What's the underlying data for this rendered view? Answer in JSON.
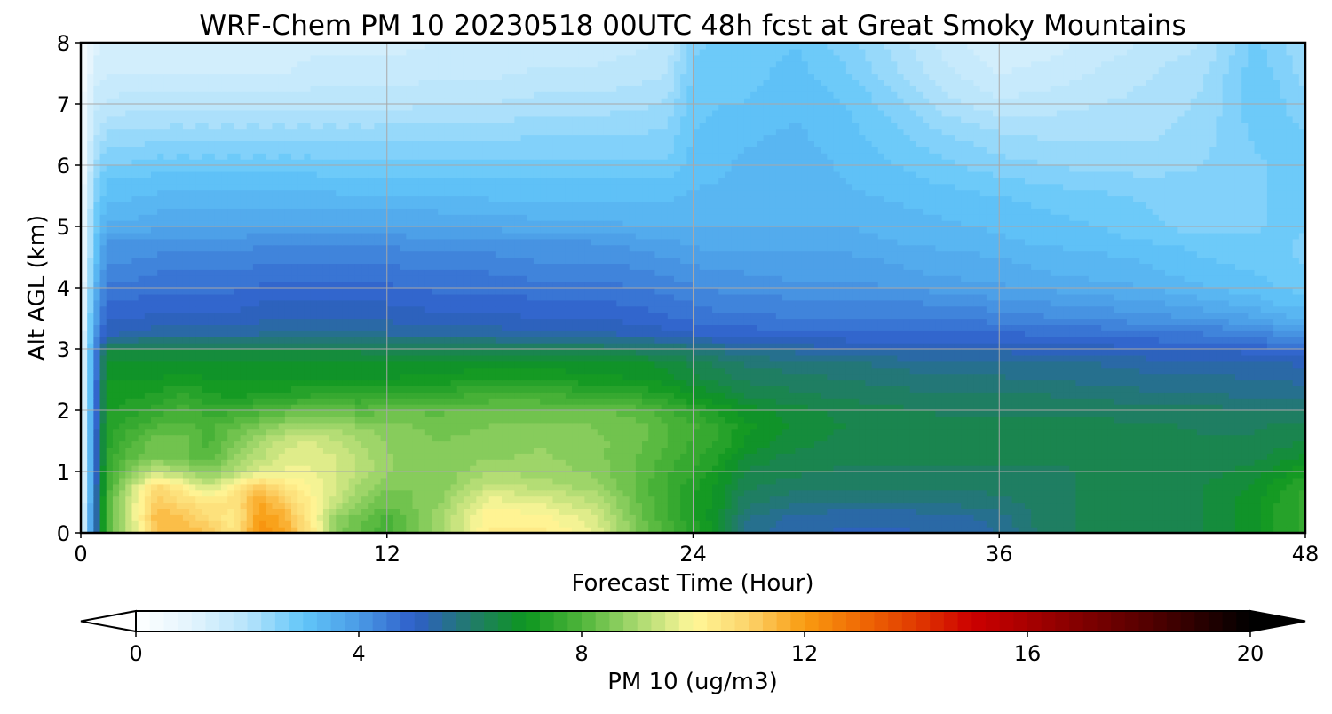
{
  "chart_data": {
    "type": "heatmap",
    "title": "WRF-Chem PM 10  20230518 00UTC 48h fcst at Great Smoky Mountains",
    "xlabel": "Forecast Time (Hour)",
    "ylabel": "Alt AGL (km)",
    "xlim": [
      0,
      48
    ],
    "ylim": [
      0,
      8
    ],
    "xticks": [
      0,
      12,
      24,
      36,
      48
    ],
    "yticks": [
      0,
      1,
      2,
      3,
      4,
      5,
      6,
      7,
      8
    ],
    "grid": true,
    "colorbar": {
      "label": "PM 10  (ug/m3)",
      "min": 0,
      "max": 20,
      "ticks": [
        0,
        4,
        8,
        12,
        16,
        20
      ],
      "extend": "both",
      "orientation": "horizontal",
      "stops": [
        {
          "v": 0,
          "c": "#ffffff"
        },
        {
          "v": 1,
          "c": "#e2f4fd"
        },
        {
          "v": 2,
          "c": "#b6e4fb"
        },
        {
          "v": 3,
          "c": "#62c6f9"
        },
        {
          "v": 4,
          "c": "#4a9ae6"
        },
        {
          "v": 5,
          "c": "#2f5ec9"
        },
        {
          "v": 6,
          "c": "#217a6b"
        },
        {
          "v": 7,
          "c": "#0d9620"
        },
        {
          "v": 8,
          "c": "#4fb53a"
        },
        {
          "v": 9,
          "c": "#a9d970"
        },
        {
          "v": 10,
          "c": "#fff799"
        },
        {
          "v": 11,
          "c": "#fcd36a"
        },
        {
          "v": 12,
          "c": "#f99b10"
        },
        {
          "v": 13,
          "c": "#f06a05"
        },
        {
          "v": 14,
          "c": "#e03a00"
        },
        {
          "v": 15,
          "c": "#cc0000"
        },
        {
          "v": 16,
          "c": "#a80000"
        },
        {
          "v": 17,
          "c": "#800000"
        },
        {
          "v": 18,
          "c": "#5a0000"
        },
        {
          "v": 19,
          "c": "#2e0000"
        },
        {
          "v": 20,
          "c": "#000000"
        }
      ]
    },
    "x": [
      0,
      0.5,
      1,
      2,
      3,
      4,
      5,
      6,
      7,
      8,
      9,
      10,
      11,
      12,
      14,
      16,
      18,
      20,
      22,
      23,
      24,
      25,
      26,
      28,
      30,
      32,
      34,
      36,
      38,
      40,
      42,
      44,
      46,
      47,
      48
    ],
    "y": [
      0,
      0.25,
      0.5,
      0.75,
      1,
      1.25,
      1.5,
      1.75,
      2,
      2.25,
      2.5,
      2.75,
      3,
      3.25,
      3.5,
      3.75,
      4,
      4.25,
      4.5,
      4.75,
      5,
      5.5,
      6,
      6.5,
      7,
      7.5,
      8
    ],
    "z": [
      [
        0.5,
        4.5,
        8.0,
        9.5,
        11.2,
        11.4,
        11.3,
        10.5,
        12.2,
        11.8,
        10.6,
        8.6,
        8.2,
        7.8,
        8.8,
        10.3,
        10.4,
        9.8,
        8.4,
        7.9,
        7.4,
        6.8,
        5.6,
        5.3,
        5.2,
        5.2,
        5.3,
        5.5,
        6.2,
        6.3,
        6.3,
        6.5,
        6.9,
        7.3,
        7.6
      ],
      [
        0.5,
        4.5,
        8.0,
        9.5,
        11.5,
        11.3,
        10.8,
        10.3,
        12.0,
        11.6,
        10.3,
        8.8,
        8.3,
        7.9,
        8.9,
        10.2,
        10.1,
        9.6,
        8.3,
        7.8,
        7.3,
        6.8,
        5.8,
        5.4,
        5.3,
        5.3,
        5.4,
        5.6,
        6.2,
        6.3,
        6.3,
        6.5,
        6.9,
        7.3,
        7.6
      ],
      [
        0.5,
        4.5,
        7.9,
        9.6,
        11.2,
        10.8,
        10.5,
        10.6,
        11.8,
        11.2,
        10.2,
        9.3,
        8.7,
        8.3,
        8.7,
        9.9,
        9.7,
        9.3,
        8.2,
        7.7,
        7.2,
        6.9,
        6.1,
        5.8,
        5.7,
        5.7,
        5.8,
        5.9,
        6.2,
        6.3,
        6.3,
        6.5,
        6.9,
        7.3,
        7.6
      ],
      [
        0.5,
        4.4,
        7.8,
        9.3,
        10.9,
        10.2,
        9.4,
        10.3,
        11.2,
        10.5,
        10.0,
        9.5,
        8.9,
        8.5,
        8.5,
        9.4,
        9.2,
        8.9,
        8.1,
        7.7,
        7.3,
        6.9,
        6.3,
        6.1,
        6.0,
        6.0,
        6.0,
        6.1,
        6.2,
        6.3,
        6.3,
        6.5,
        6.8,
        7.2,
        7.5
      ],
      [
        0.5,
        4.4,
        7.6,
        8.6,
        9.3,
        9.0,
        8.6,
        9.0,
        9.6,
        9.8,
        9.8,
        9.5,
        9.2,
        8.8,
        8.5,
        9.0,
        8.9,
        8.7,
        8.2,
        7.8,
        7.5,
        7.1,
        6.5,
        6.3,
        6.2,
        6.2,
        6.2,
        6.2,
        6.2,
        6.3,
        6.3,
        6.4,
        6.6,
        6.9,
        7.2
      ],
      [
        0.5,
        4.3,
        7.5,
        8.2,
        8.5,
        8.3,
        8.1,
        8.7,
        9.2,
        9.6,
        9.7,
        9.5,
        9.1,
        8.8,
        8.5,
        8.7,
        8.8,
        8.6,
        8.2,
        7.9,
        7.6,
        7.3,
        6.7,
        6.4,
        6.3,
        6.3,
        6.3,
        6.3,
        6.3,
        6.3,
        6.3,
        6.3,
        6.4,
        6.6,
        6.8
      ],
      [
        0.5,
        4.3,
        7.4,
        8.0,
        8.4,
        8.4,
        7.9,
        8.5,
        9.0,
        9.4,
        9.5,
        9.3,
        9.0,
        8.7,
        8.5,
        8.6,
        8.7,
        8.6,
        8.3,
        8.0,
        7.7,
        7.5,
        7.0,
        6.6,
        6.4,
        6.3,
        6.3,
        6.3,
        6.3,
        6.3,
        6.3,
        6.3,
        6.3,
        6.4,
        6.5
      ],
      [
        0.5,
        4.2,
        7.3,
        7.7,
        8.0,
        8.1,
        7.9,
        8.2,
        8.5,
        8.8,
        9.0,
        8.9,
        8.7,
        8.6,
        8.4,
        8.5,
        8.6,
        8.5,
        8.3,
        8.0,
        7.8,
        7.5,
        7.1,
        6.7,
        6.5,
        6.4,
        6.3,
        6.3,
        6.3,
        6.3,
        6.3,
        6.2,
        6.2,
        6.3,
        6.3
      ],
      [
        0.4,
        4.2,
        7.2,
        7.4,
        7.6,
        7.9,
        7.6,
        7.7,
        7.9,
        8.1,
        8.3,
        8.2,
        8.1,
        8.2,
        8.2,
        8.3,
        8.3,
        8.3,
        8.1,
        7.8,
        7.5,
        7.2,
        6.9,
        6.6,
        6.4,
        6.3,
        6.2,
        6.2,
        6.2,
        6.2,
        6.1,
        6.1,
        6.0,
        6.0,
        6.0
      ],
      [
        0.4,
        4.1,
        7.1,
        7.2,
        7.3,
        7.6,
        7.3,
        7.2,
        7.3,
        7.4,
        7.5,
        7.5,
        7.5,
        7.6,
        7.7,
        7.8,
        7.8,
        7.7,
        7.5,
        7.3,
        7.0,
        6.8,
        6.5,
        6.3,
        6.2,
        6.1,
        6.0,
        6.0,
        6.0,
        5.9,
        5.8,
        5.8,
        5.7,
        5.7,
        5.6
      ],
      [
        0.4,
        4.0,
        7.0,
        7.0,
        7.0,
        7.1,
        7.0,
        7.0,
        7.0,
        7.0,
        7.0,
        7.0,
        7.0,
        7.0,
        7.1,
        7.2,
        7.2,
        7.1,
        7.0,
        6.9,
        6.6,
        6.4,
        6.2,
        6.1,
        6.0,
        5.9,
        5.8,
        5.8,
        5.7,
        5.7,
        5.6,
        5.6,
        5.5,
        5.5,
        5.4
      ],
      [
        0.4,
        4.0,
        6.9,
        6.9,
        6.9,
        6.9,
        6.9,
        6.9,
        6.9,
        6.9,
        6.9,
        6.9,
        6.9,
        6.9,
        6.9,
        6.9,
        6.9,
        6.9,
        6.8,
        6.7,
        6.4,
        6.2,
        6.0,
        5.9,
        5.8,
        5.7,
        5.6,
        5.6,
        5.5,
        5.5,
        5.4,
        5.4,
        5.3,
        5.3,
        5.2
      ],
      [
        0.4,
        3.9,
        6.5,
        6.4,
        6.4,
        6.4,
        6.4,
        6.4,
        6.4,
        6.4,
        6.4,
        6.4,
        6.4,
        6.3,
        6.3,
        6.3,
        6.2,
        6.2,
        6.1,
        6.0,
        5.9,
        5.7,
        5.5,
        5.4,
        5.3,
        5.2,
        5.2,
        5.2,
        5.1,
        5.1,
        5.0,
        5.0,
        4.9,
        4.8,
        4.7
      ],
      [
        0.4,
        3.8,
        5.2,
        5.3,
        5.4,
        5.4,
        5.4,
        5.4,
        5.5,
        5.5,
        5.5,
        5.5,
        5.5,
        5.5,
        5.4,
        5.4,
        5.3,
        5.3,
        5.2,
        5.1,
        5.0,
        4.9,
        4.9,
        4.8,
        4.8,
        4.8,
        4.8,
        4.8,
        4.7,
        4.7,
        4.6,
        4.5,
        4.4,
        4.2,
        4.0
      ],
      [
        0.4,
        3.6,
        5.0,
        5.0,
        5.1,
        5.1,
        5.1,
        5.1,
        5.2,
        5.2,
        5.2,
        5.2,
        5.2,
        5.2,
        5.1,
        5.1,
        5.0,
        5.0,
        4.9,
        4.8,
        4.7,
        4.6,
        4.6,
        4.5,
        4.5,
        4.5,
        4.5,
        4.4,
        4.3,
        4.2,
        4.1,
        4.0,
        3.8,
        3.6,
        3.5
      ],
      [
        0.4,
        3.4,
        4.8,
        4.8,
        4.9,
        4.9,
        4.9,
        4.9,
        5.0,
        5.0,
        5.0,
        5.0,
        5.0,
        5.0,
        4.9,
        4.9,
        4.8,
        4.8,
        4.7,
        4.6,
        4.5,
        4.4,
        4.4,
        4.3,
        4.3,
        4.3,
        4.2,
        4.1,
        4.0,
        3.9,
        3.8,
        3.6,
        3.4,
        3.2,
        3.1
      ],
      [
        0.3,
        3.2,
        4.6,
        4.6,
        4.7,
        4.7,
        4.7,
        4.7,
        4.8,
        4.8,
        4.8,
        4.8,
        4.8,
        4.8,
        4.7,
        4.7,
        4.6,
        4.6,
        4.5,
        4.4,
        4.3,
        4.2,
        4.2,
        4.1,
        4.1,
        4.0,
        3.9,
        3.8,
        3.7,
        3.6,
        3.5,
        3.3,
        3.1,
        3.0,
        2.9
      ],
      [
        0.3,
        3.0,
        4.4,
        4.4,
        4.5,
        4.5,
        4.5,
        4.5,
        4.6,
        4.6,
        4.6,
        4.6,
        4.6,
        4.6,
        4.5,
        4.5,
        4.4,
        4.4,
        4.3,
        4.2,
        4.1,
        4.0,
        4.0,
        3.9,
        3.9,
        3.8,
        3.7,
        3.6,
        3.5,
        3.4,
        3.3,
        3.1,
        3.0,
        2.9,
        2.8
      ],
      [
        0.3,
        2.9,
        4.2,
        4.2,
        4.3,
        4.3,
        4.3,
        4.3,
        4.4,
        4.4,
        4.4,
        4.4,
        4.4,
        4.4,
        4.3,
        4.3,
        4.2,
        4.2,
        4.1,
        4.0,
        3.9,
        3.8,
        3.8,
        3.8,
        3.8,
        3.7,
        3.6,
        3.5,
        3.4,
        3.3,
        3.2,
        3.0,
        2.9,
        2.8,
        2.7
      ],
      [
        0.3,
        2.8,
        4.0,
        4.0,
        4.1,
        4.1,
        4.1,
        4.1,
        4.2,
        4.2,
        4.2,
        4.2,
        4.2,
        4.2,
        4.1,
        4.1,
        4.0,
        4.0,
        3.9,
        3.8,
        3.7,
        3.6,
        3.6,
        3.6,
        3.6,
        3.5,
        3.4,
        3.3,
        3.2,
        3.1,
        3.0,
        2.9,
        2.8,
        2.8,
        2.7
      ],
      [
        0.3,
        2.7,
        3.6,
        3.6,
        3.7,
        3.7,
        3.7,
        3.7,
        3.8,
        3.8,
        3.8,
        3.8,
        3.8,
        3.8,
        3.7,
        3.7,
        3.6,
        3.6,
        3.5,
        3.5,
        3.5,
        3.5,
        3.5,
        3.5,
        3.5,
        3.4,
        3.3,
        3.2,
        3.1,
        3.0,
        2.8,
        2.6,
        2.7,
        2.8,
        2.8
      ],
      [
        0.2,
        2.5,
        3.2,
        3.2,
        3.3,
        3.3,
        3.3,
        3.3,
        3.3,
        3.3,
        3.3,
        3.3,
        3.3,
        3.3,
        3.3,
        3.2,
        3.2,
        3.2,
        3.2,
        3.2,
        3.3,
        3.3,
        3.4,
        3.4,
        3.3,
        3.2,
        3.1,
        3.0,
        2.9,
        2.8,
        2.7,
        2.6,
        2.7,
        2.8,
        2.8
      ],
      [
        0.2,
        2.2,
        2.8,
        2.8,
        2.9,
        2.9,
        2.9,
        2.9,
        2.9,
        2.9,
        2.9,
        2.8,
        2.8,
        2.8,
        2.8,
        2.8,
        2.8,
        2.8,
        2.8,
        2.8,
        3.1,
        3.2,
        3.3,
        3.4,
        3.2,
        3.0,
        2.8,
        2.6,
        2.5,
        2.4,
        2.4,
        2.5,
        2.7,
        2.8,
        2.8
      ],
      [
        0.2,
        1.9,
        2.3,
        2.3,
        2.4,
        2.4,
        2.4,
        2.4,
        2.4,
        2.4,
        2.4,
        2.4,
        2.4,
        2.4,
        2.4,
        2.4,
        2.5,
        2.5,
        2.5,
        2.6,
        3.0,
        3.1,
        3.2,
        3.3,
        3.1,
        2.8,
        2.5,
        2.3,
        2.2,
        2.2,
        2.2,
        2.4,
        2.8,
        2.8,
        2.8
      ],
      [
        0.2,
        1.6,
        1.8,
        1.9,
        1.9,
        1.9,
        1.9,
        1.9,
        1.9,
        1.9,
        1.9,
        1.9,
        1.9,
        1.9,
        2.0,
        2.0,
        2.1,
        2.1,
        2.2,
        2.3,
        2.9,
        3.0,
        3.0,
        3.2,
        3.0,
        2.6,
        2.1,
        1.8,
        1.9,
        2.0,
        2.1,
        2.3,
        2.9,
        2.8,
        2.6
      ],
      [
        0.1,
        1.3,
        1.5,
        1.5,
        1.5,
        1.5,
        1.5,
        1.5,
        1.5,
        1.5,
        1.6,
        1.6,
        1.6,
        1.6,
        1.7,
        1.7,
        1.8,
        1.8,
        1.9,
        2.0,
        2.8,
        2.9,
        2.9,
        3.1,
        2.8,
        2.3,
        1.8,
        1.5,
        1.6,
        1.8,
        2.0,
        2.2,
        2.9,
        2.7,
        2.4
      ],
      [
        0.1,
        1.1,
        1.3,
        1.3,
        1.3,
        1.3,
        1.3,
        1.3,
        1.3,
        1.3,
        1.4,
        1.4,
        1.4,
        1.4,
        1.5,
        1.5,
        1.6,
        1.6,
        1.7,
        1.8,
        2.7,
        2.8,
        2.8,
        3.0,
        2.6,
        2.1,
        1.6,
        1.3,
        1.4,
        1.6,
        1.8,
        2.0,
        2.8,
        2.6,
        2.2
      ]
    ]
  }
}
